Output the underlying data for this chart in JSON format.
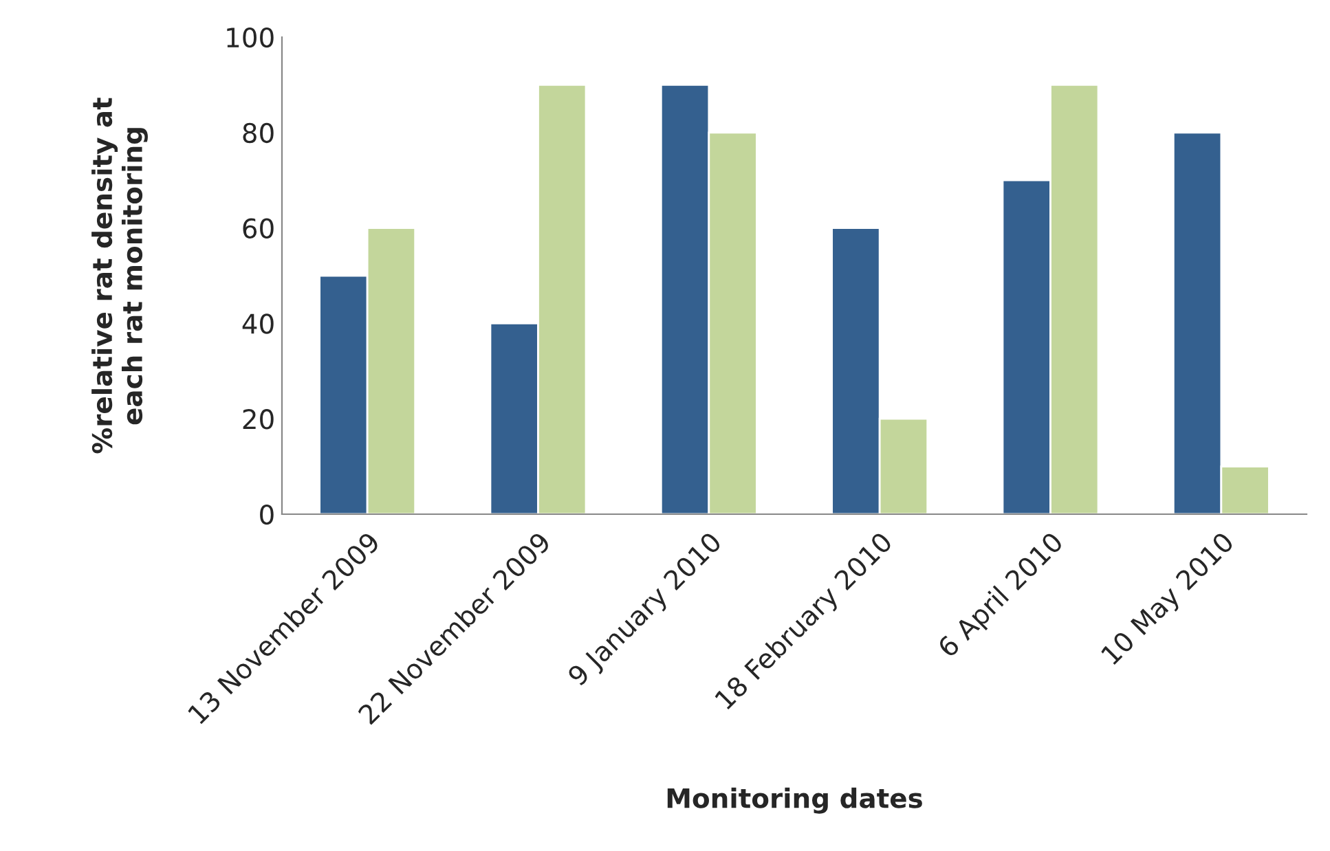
{
  "chart_data": {
    "type": "bar",
    "xlabel": "Monitoring dates",
    "ylabel": "%relative rat density at\neach rat monitoring",
    "categories": [
      "13 November 2009",
      "22 November 2009",
      "9 January 2010",
      "18 February 2010",
      "6 April 2010",
      "10 May 2010"
    ],
    "series": [
      {
        "color": "#34608f",
        "values": [
          50,
          40,
          90,
          60,
          70,
          80
        ]
      },
      {
        "color": "#c3d69b",
        "values": [
          60,
          90,
          80,
          20,
          90,
          10
        ]
      }
    ],
    "ylim": [
      0,
      100
    ],
    "yticks": [
      0,
      20,
      40,
      60,
      80,
      100
    ],
    "grid": false
  }
}
